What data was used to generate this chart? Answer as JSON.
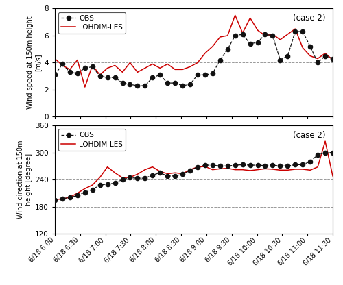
{
  "wind_speed_obs": [
    3.1,
    3.9,
    3.3,
    3.2,
    3.6,
    3.7,
    3.0,
    2.9,
    2.9,
    2.5,
    2.4,
    2.3,
    2.3,
    2.9,
    3.1,
    2.5,
    2.5,
    2.3,
    2.4,
    3.1,
    3.1,
    3.2,
    4.2,
    5.0,
    6.0,
    6.1,
    5.4,
    5.5,
    6.1,
    6.0,
    4.2,
    4.5,
    6.3,
    6.3,
    5.2,
    4.0,
    4.5,
    4.3
  ],
  "wind_speed_les": [
    4.3,
    3.8,
    3.5,
    4.2,
    2.2,
    3.8,
    3.1,
    3.6,
    3.8,
    3.3,
    4.0,
    3.3,
    3.6,
    3.9,
    3.6,
    3.9,
    3.5,
    3.5,
    3.7,
    4.0,
    4.7,
    5.2,
    5.9,
    6.0,
    7.5,
    6.2,
    7.3,
    6.4,
    6.0,
    6.1,
    5.7,
    6.1,
    6.5,
    5.1,
    4.5,
    4.3,
    4.7,
    4.2
  ],
  "wind_dir_obs": [
    195,
    198,
    200,
    205,
    212,
    218,
    228,
    230,
    232,
    240,
    244,
    243,
    243,
    250,
    255,
    248,
    248,
    252,
    260,
    268,
    272,
    272,
    270,
    270,
    272,
    273,
    272,
    272,
    271,
    272,
    270,
    270,
    273,
    273,
    280,
    295,
    300,
    300
  ],
  "wind_dir_les": [
    196,
    197,
    201,
    210,
    220,
    228,
    245,
    268,
    255,
    244,
    245,
    252,
    262,
    268,
    258,
    253,
    255,
    253,
    262,
    268,
    269,
    262,
    264,
    265,
    262,
    262,
    260,
    262,
    264,
    263,
    261,
    261,
    263,
    263,
    261,
    268,
    325,
    248
  ],
  "x_ticks_labels": [
    "6/18 6:00",
    "6/18 6:30",
    "6/18 7:00",
    "6/18 7:30",
    "6/18 8:00",
    "6/18 8:30",
    "6/18 9:00",
    "6/18 9:30",
    "6/18 10:00",
    "6/18 10:30",
    "6/18 11:00",
    "6/18 11:30"
  ],
  "speed_ylim": [
    0.0,
    8.0
  ],
  "speed_yticks": [
    0.0,
    2.0,
    4.0,
    6.0,
    8.0
  ],
  "dir_ylim": [
    120,
    360
  ],
  "dir_yticks": [
    120,
    180,
    240,
    300,
    360
  ],
  "obs_color": "#111111",
  "les_color": "#cc0000",
  "obs_marker": "o",
  "obs_linestyle": "--",
  "les_linestyle": "-",
  "obs_label": "OBS",
  "les_label": "LOHDIM-LES",
  "case_label": "(case 2)",
  "speed_ylabel1": "Wind speed at 150m height",
  "speed_ylabel2": "[m/s]",
  "dir_ylabel1": "Wind direction at 150m",
  "dir_ylabel2": "height [degree]",
  "grid_color": "#999999",
  "grid_linestyle": "--",
  "background_color": "#ffffff"
}
